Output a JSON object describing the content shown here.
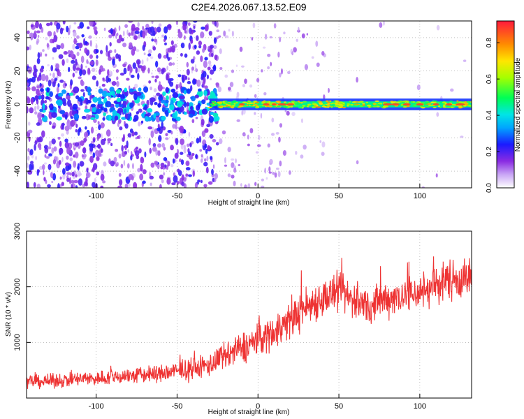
{
  "figure": {
    "title": "C2E4.2026.067.13.52.E09"
  },
  "chart_data": [
    {
      "type": "heatmap",
      "title": "",
      "xlabel": "Height of straight line (km)",
      "ylabel": "Frequency (Hz)",
      "xlim": [
        -143,
        132
      ],
      "ylim": [
        -50,
        50
      ],
      "xticks": [
        -100,
        -50,
        0,
        50,
        100
      ],
      "yticks": [
        -40,
        -20,
        0,
        20,
        40
      ],
      "grid": true,
      "colorbar": {
        "label": "Normalized spectral amplitude",
        "range": [
          0.0,
          0.92
        ],
        "ticks": [
          0.0,
          0.2,
          0.4,
          0.6,
          0.8
        ],
        "colormap": "white-purple-blue-cyan-green-yellow-orange-red"
      },
      "ridge": {
        "frequency_center": 0,
        "x_start": -30,
        "x_end": 132,
        "amplitude_level": 0.45,
        "hot_spots_x": [
          -10,
          5,
          10,
          15,
          20,
          80,
          85,
          92,
          100,
          110,
          118,
          125
        ]
      },
      "noise_region": {
        "x_start": -143,
        "x_end": -25,
        "amplitude_level": 0.12
      }
    },
    {
      "type": "line",
      "title": "",
      "xlabel": "Height of straight line (km)",
      "ylabel": "SNR (10 * v/v)",
      "xlim": [
        -143,
        132
      ],
      "ylim": [
        0,
        3000
      ],
      "xticks": [
        -100,
        -50,
        0,
        50,
        100
      ],
      "yticks": [
        1000,
        2000,
        3000
      ],
      "grid": true,
      "series": [
        {
          "color": "#ee3333",
          "x": [
            -143,
            -130,
            -120,
            -110,
            -100,
            -90,
            -80,
            -70,
            -60,
            -50,
            -40,
            -30,
            -20,
            -10,
            0,
            10,
            20,
            30,
            40,
            50,
            60,
            70,
            80,
            90,
            100,
            110,
            120,
            132
          ],
          "mean": [
            300,
            300,
            320,
            340,
            350,
            380,
            400,
            420,
            440,
            480,
            520,
            600,
            750,
            900,
            1050,
            1200,
            1400,
            1650,
            1800,
            1900,
            1750,
            1650,
            1800,
            1850,
            1900,
            2050,
            2150,
            2150
          ],
          "spread": [
            180,
            180,
            190,
            200,
            200,
            210,
            220,
            230,
            240,
            260,
            280,
            320,
            380,
            420,
            450,
            480,
            500,
            520,
            520,
            520,
            500,
            500,
            500,
            520,
            520,
            540,
            560,
            560
          ]
        }
      ]
    }
  ]
}
